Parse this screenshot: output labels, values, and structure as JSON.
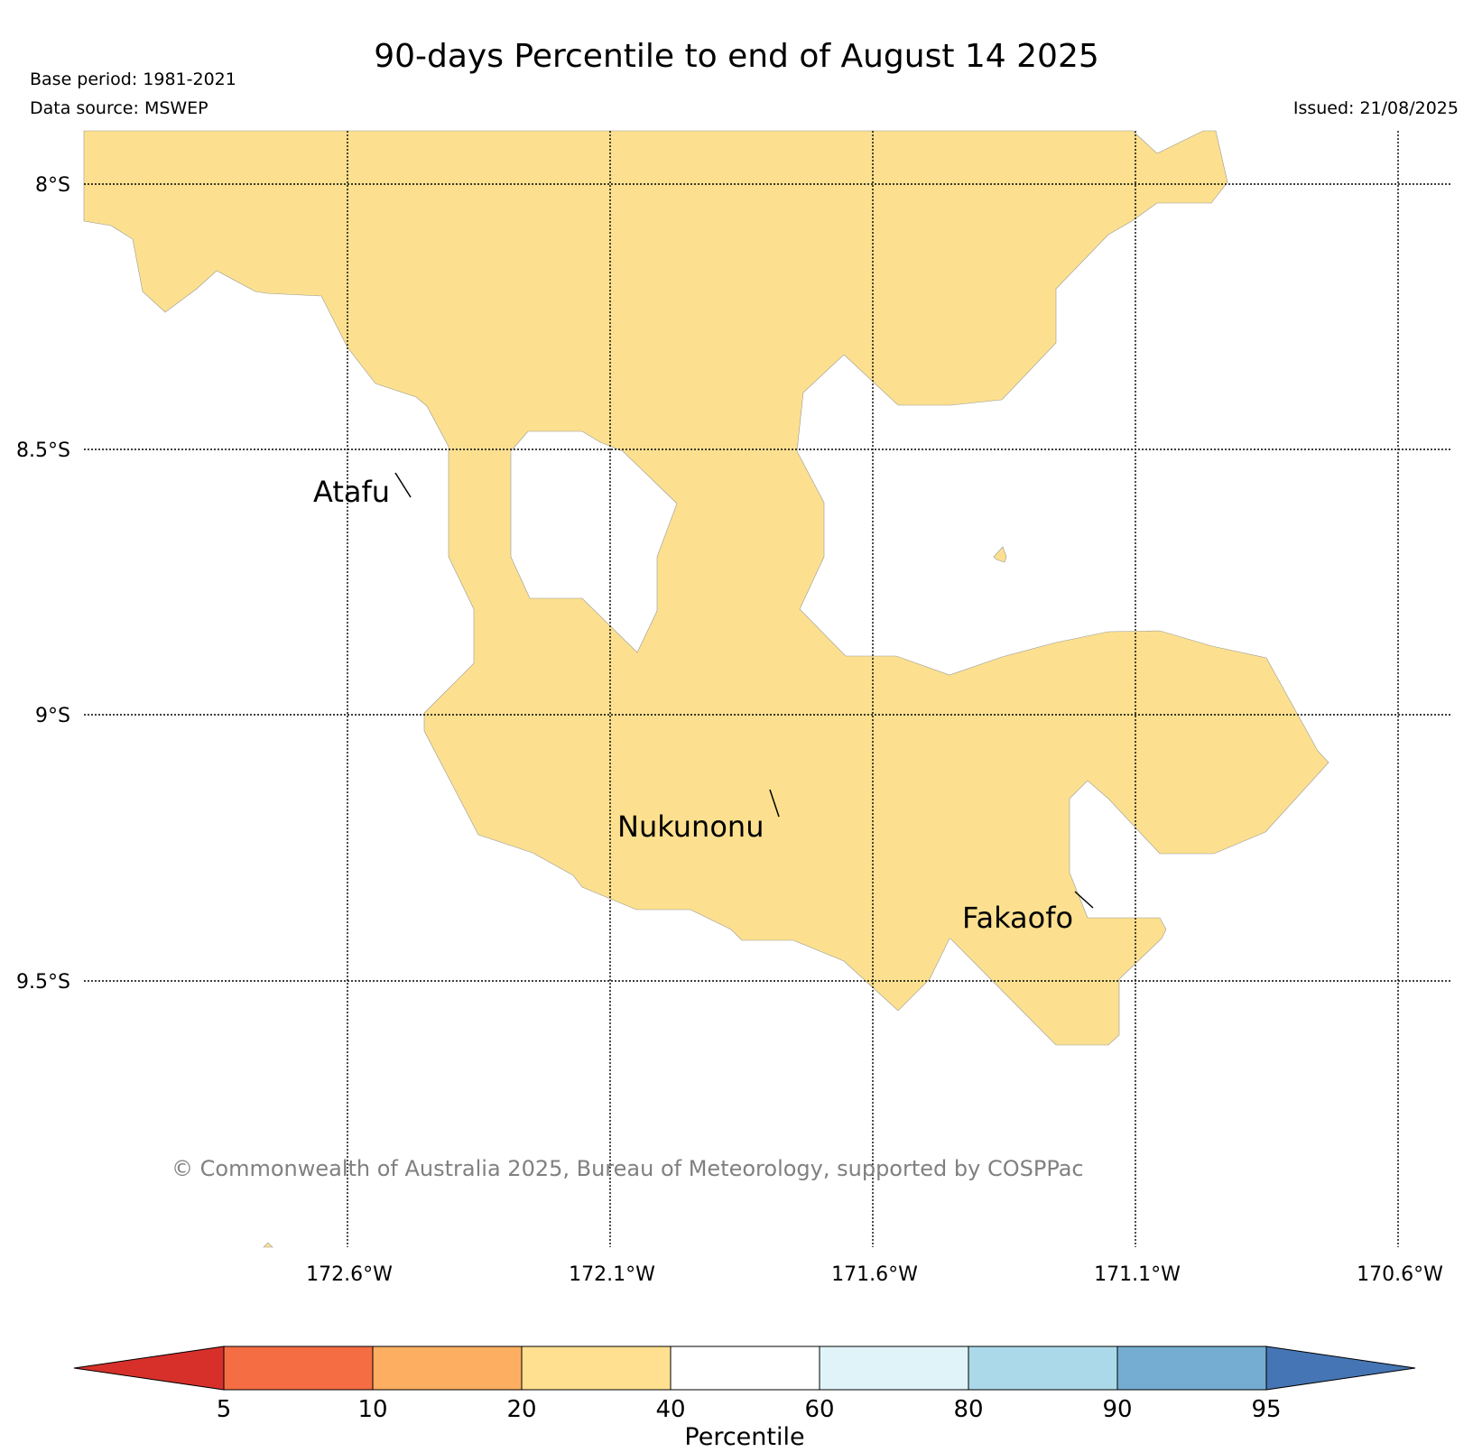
{
  "header": {
    "title": "90-days Percentile to end of August 14 2025",
    "base_period": "Base period: 1981-2021",
    "data_source": "Data source: MSWEP",
    "issued": "Issued: 21/08/2025"
  },
  "map": {
    "lat_labels": [
      "8°S",
      "8.5°S",
      "9°S",
      "9.5°S"
    ],
    "lon_labels": [
      "172.6°W",
      "172.1°W",
      "171.6°W",
      "171.1°W",
      "170.6°W"
    ],
    "places": [
      {
        "name": "Atafu"
      },
      {
        "name": "Nukunonu"
      },
      {
        "name": "Fakaofo"
      }
    ],
    "region_category": "20–40",
    "region_color": "#fce08f",
    "copyright": "© Commonwealth of Australia 2025, Bureau of Meteorology, supported by COSPPac"
  },
  "legend": {
    "label": "Percentile",
    "ticks": [
      "5",
      "10",
      "20",
      "40",
      "60",
      "80",
      "90",
      "95"
    ],
    "colors": [
      "#d7302a",
      "#f46d43",
      "#fdae61",
      "#fee090",
      "#ffffff",
      "#e0f3f8",
      "#abd9e9",
      "#74add1",
      "#4575b4"
    ]
  }
}
